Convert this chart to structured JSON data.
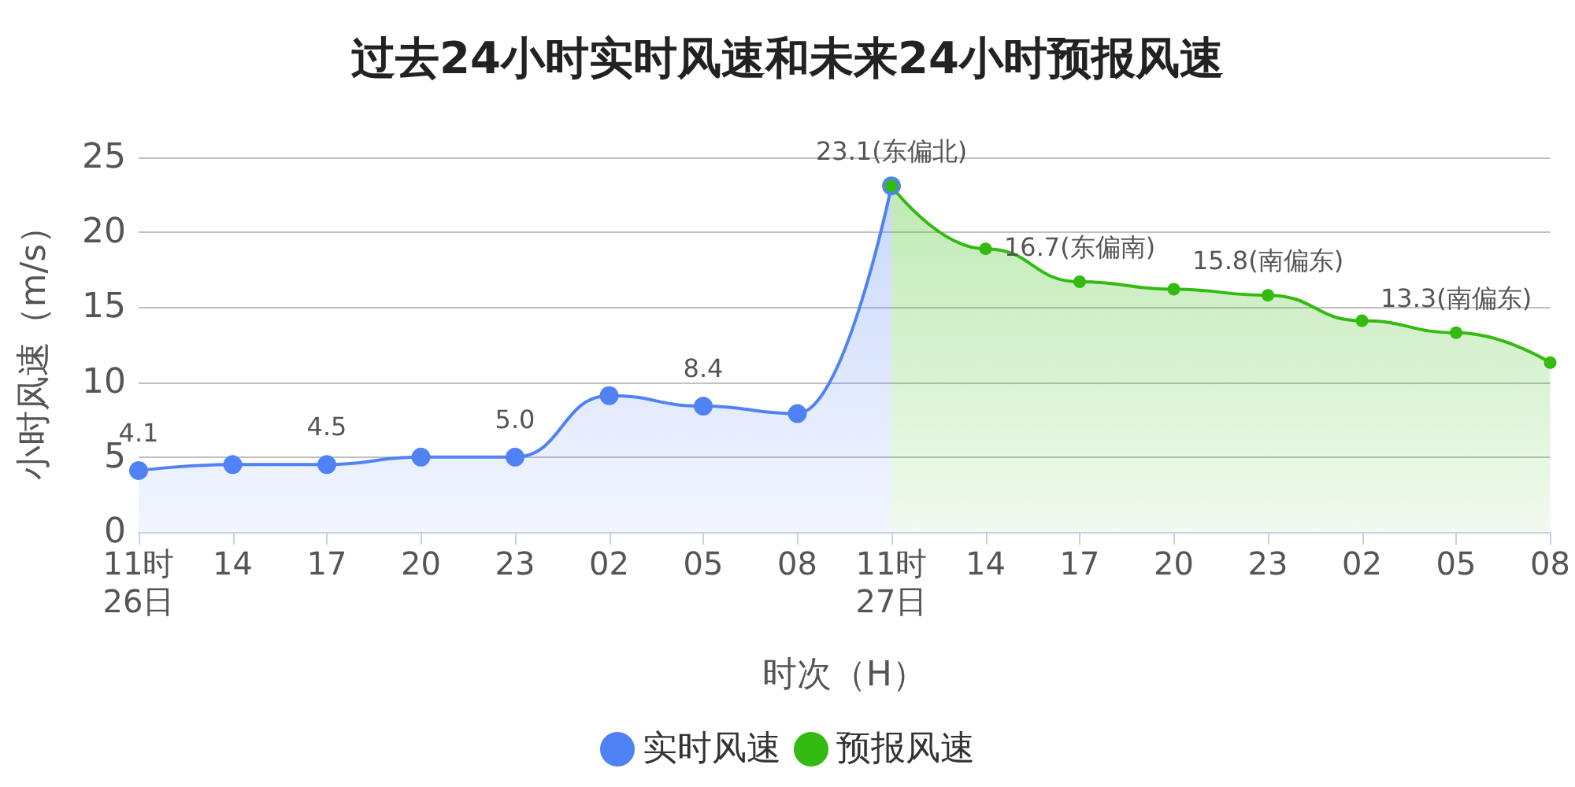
{
  "chart_data": {
    "type": "area",
    "title": "过去24小时实时风速和未来24小时预报风速",
    "xlabel": "时次（H）",
    "ylabel": "小时风速（m/s）",
    "categories": [
      "11时\n26日",
      "14",
      "17",
      "20",
      "23",
      "02",
      "05",
      "08",
      "11时\n27日",
      "14",
      "17",
      "20",
      "23",
      "02",
      "05",
      "08"
    ],
    "series": [
      {
        "name": "实时风速",
        "color": "#5082f5",
        "values": [
          4.1,
          4.5,
          4.5,
          5.0,
          5.0,
          9.1,
          8.4,
          7.9,
          23.1,
          null,
          null,
          null,
          null,
          null,
          null,
          null
        ],
        "value_labels": [
          "4.1",
          null,
          "4.5",
          null,
          "5.0",
          null,
          "8.4",
          null,
          null,
          null,
          null,
          null,
          null,
          null,
          null,
          null
        ]
      },
      {
        "name": "预报风速",
        "color": "#33bb11",
        "values": [
          null,
          null,
          null,
          null,
          null,
          null,
          null,
          null,
          23.1,
          18.9,
          16.7,
          16.2,
          15.8,
          14.1,
          13.3,
          11.3
        ],
        "value_labels": [
          null,
          null,
          null,
          null,
          null,
          null,
          null,
          null,
          "23.1(东偏北)",
          null,
          "16.7(东偏南)",
          null,
          "15.8(南偏东)",
          null,
          "13.3(南偏东)",
          null
        ]
      }
    ],
    "ylim": [
      0,
      25
    ],
    "yticks": [
      0,
      5,
      10,
      15,
      20,
      25
    ],
    "grid": "y",
    "legend": "bottom",
    "marker": "circle",
    "line_style": "solid"
  }
}
